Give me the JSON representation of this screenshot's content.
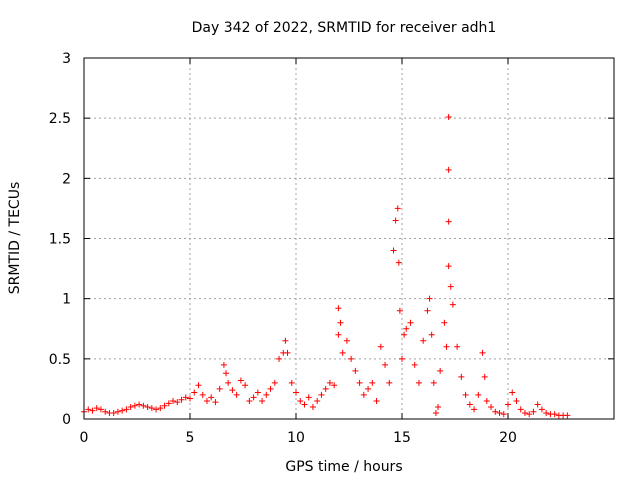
{
  "chart_data": {
    "type": "scatter",
    "title": "Day 342 of 2022, SRMTID for receiver adh1",
    "xlabel": "GPS time / hours",
    "ylabel": "SRMTID / TECUs",
    "xlim": [
      0,
      25
    ],
    "ylim": [
      0,
      3
    ],
    "x_ticks": [
      0,
      5,
      10,
      15,
      20
    ],
    "y_ticks": [
      0,
      0.5,
      1,
      1.5,
      2,
      2.5,
      3
    ],
    "x_tick_labels": [
      "0",
      "5",
      "10",
      "15",
      "20"
    ],
    "y_tick_labels": [
      "0",
      "0.5",
      "1",
      "1.5",
      "2",
      "2.5",
      "3"
    ],
    "grid": true,
    "marker": "+",
    "series_color": "#ff0000",
    "series": [
      {
        "name": "SRMTID",
        "points": [
          [
            0.0,
            0.06
          ],
          [
            0.2,
            0.08
          ],
          [
            0.4,
            0.07
          ],
          [
            0.6,
            0.09
          ],
          [
            0.8,
            0.08
          ],
          [
            1.0,
            0.06
          ],
          [
            1.2,
            0.05
          ],
          [
            1.4,
            0.05
          ],
          [
            1.6,
            0.06
          ],
          [
            1.8,
            0.07
          ],
          [
            2.0,
            0.08
          ],
          [
            2.2,
            0.1
          ],
          [
            2.4,
            0.11
          ],
          [
            2.6,
            0.12
          ],
          [
            2.8,
            0.11
          ],
          [
            3.0,
            0.1
          ],
          [
            3.2,
            0.09
          ],
          [
            3.4,
            0.08
          ],
          [
            3.6,
            0.09
          ],
          [
            3.8,
            0.11
          ],
          [
            4.0,
            0.13
          ],
          [
            4.2,
            0.15
          ],
          [
            4.4,
            0.14
          ],
          [
            4.6,
            0.16
          ],
          [
            4.8,
            0.18
          ],
          [
            5.0,
            0.17
          ],
          [
            5.2,
            0.22
          ],
          [
            5.4,
            0.28
          ],
          [
            5.6,
            0.2
          ],
          [
            5.8,
            0.15
          ],
          [
            6.0,
            0.18
          ],
          [
            6.2,
            0.14
          ],
          [
            6.4,
            0.25
          ],
          [
            6.6,
            0.45
          ],
          [
            6.7,
            0.38
          ],
          [
            6.8,
            0.3
          ],
          [
            7.0,
            0.24
          ],
          [
            7.2,
            0.2
          ],
          [
            7.4,
            0.32
          ],
          [
            7.6,
            0.28
          ],
          [
            7.8,
            0.15
          ],
          [
            8.0,
            0.18
          ],
          [
            8.2,
            0.22
          ],
          [
            8.4,
            0.15
          ],
          [
            8.6,
            0.2
          ],
          [
            8.8,
            0.25
          ],
          [
            9.0,
            0.3
          ],
          [
            9.2,
            0.5
          ],
          [
            9.4,
            0.55
          ],
          [
            9.5,
            0.65
          ],
          [
            9.6,
            0.55
          ],
          [
            9.8,
            0.3
          ],
          [
            10.0,
            0.22
          ],
          [
            10.2,
            0.15
          ],
          [
            10.4,
            0.12
          ],
          [
            10.6,
            0.18
          ],
          [
            10.8,
            0.1
          ],
          [
            11.0,
            0.15
          ],
          [
            11.2,
            0.2
          ],
          [
            11.4,
            0.25
          ],
          [
            11.6,
            0.3
          ],
          [
            11.8,
            0.28
          ],
          [
            12.0,
            0.7
          ],
          [
            12.0,
            0.92
          ],
          [
            12.1,
            0.8
          ],
          [
            12.2,
            0.55
          ],
          [
            12.4,
            0.65
          ],
          [
            12.6,
            0.5
          ],
          [
            12.8,
            0.4
          ],
          [
            13.0,
            0.3
          ],
          [
            13.2,
            0.2
          ],
          [
            13.4,
            0.25
          ],
          [
            13.6,
            0.3
          ],
          [
            13.8,
            0.15
          ],
          [
            14.0,
            0.6
          ],
          [
            14.2,
            0.45
          ],
          [
            14.4,
            0.3
          ],
          [
            14.6,
            1.4
          ],
          [
            14.7,
            1.65
          ],
          [
            14.8,
            1.75
          ],
          [
            14.85,
            1.3
          ],
          [
            14.9,
            0.9
          ],
          [
            15.0,
            0.5
          ],
          [
            15.1,
            0.7
          ],
          [
            15.2,
            0.75
          ],
          [
            15.4,
            0.8
          ],
          [
            15.6,
            0.45
          ],
          [
            15.8,
            0.3
          ],
          [
            16.0,
            0.65
          ],
          [
            16.2,
            0.9
          ],
          [
            16.3,
            1.0
          ],
          [
            16.4,
            0.7
          ],
          [
            16.5,
            0.3
          ],
          [
            16.6,
            0.05
          ],
          [
            16.7,
            0.1
          ],
          [
            16.8,
            0.4
          ],
          [
            17.0,
            0.8
          ],
          [
            17.1,
            0.6
          ],
          [
            17.2,
            1.27
          ],
          [
            17.2,
            1.64
          ],
          [
            17.2,
            2.07
          ],
          [
            17.2,
            2.51
          ],
          [
            17.3,
            1.1
          ],
          [
            17.4,
            0.95
          ],
          [
            17.6,
            0.6
          ],
          [
            17.8,
            0.35
          ],
          [
            18.0,
            0.2
          ],
          [
            18.2,
            0.12
          ],
          [
            18.4,
            0.08
          ],
          [
            18.6,
            0.2
          ],
          [
            18.8,
            0.55
          ],
          [
            18.9,
            0.35
          ],
          [
            19.0,
            0.15
          ],
          [
            19.2,
            0.1
          ],
          [
            19.4,
            0.06
          ],
          [
            19.6,
            0.05
          ],
          [
            19.8,
            0.04
          ],
          [
            20.0,
            0.12
          ],
          [
            20.2,
            0.22
          ],
          [
            20.4,
            0.15
          ],
          [
            20.6,
            0.08
          ],
          [
            20.8,
            0.05
          ],
          [
            21.0,
            0.04
          ],
          [
            21.2,
            0.06
          ],
          [
            21.4,
            0.12
          ],
          [
            21.6,
            0.08
          ],
          [
            21.8,
            0.05
          ],
          [
            22.0,
            0.04
          ],
          [
            22.2,
            0.04
          ],
          [
            22.4,
            0.03
          ],
          [
            22.6,
            0.03
          ],
          [
            22.8,
            0.03
          ]
        ]
      }
    ]
  }
}
